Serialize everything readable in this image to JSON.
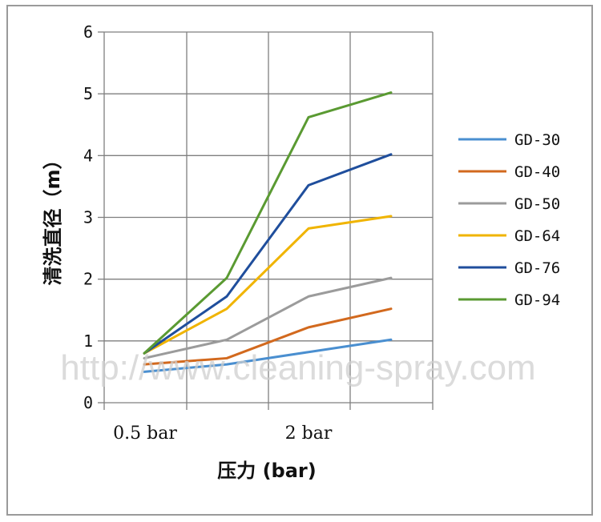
{
  "chart_data": {
    "type": "line",
    "title": "",
    "xlabel": "压力 (bar)",
    "ylabel": "清洗直径（m）",
    "x_tick_labels": [
      "0.5 bar",
      "2 bar"
    ],
    "y_ticks": [
      "0",
      "1",
      "2",
      "3",
      "4",
      "5",
      "6"
    ],
    "ylim": [
      0,
      6
    ],
    "grid": true,
    "legend_position": "right",
    "watermark": "http://www.cleaning-spray.com",
    "x": [
      0.5,
      1,
      1.5,
      2
    ],
    "series": [
      {
        "name": "GD-30",
        "color": "#4a8fd0",
        "values": [
          0.5,
          0.62,
          0.82,
          1.02
        ]
      },
      {
        "name": "GD-40",
        "color": "#d2691e",
        "values": [
          0.62,
          0.72,
          1.22,
          1.52
        ]
      },
      {
        "name": "GD-50",
        "color": "#9b9b9b",
        "values": [
          0.72,
          1.02,
          1.72,
          2.02
        ]
      },
      {
        "name": "GD-64",
        "color": "#f0b400",
        "values": [
          0.8,
          1.52,
          2.82,
          3.02
        ]
      },
      {
        "name": "GD-76",
        "color": "#1f4e9c",
        "values": [
          0.8,
          1.72,
          3.52,
          4.02
        ]
      },
      {
        "name": "GD-94",
        "color": "#5a9a32",
        "values": [
          0.8,
          2.02,
          4.62,
          5.02
        ]
      }
    ]
  }
}
